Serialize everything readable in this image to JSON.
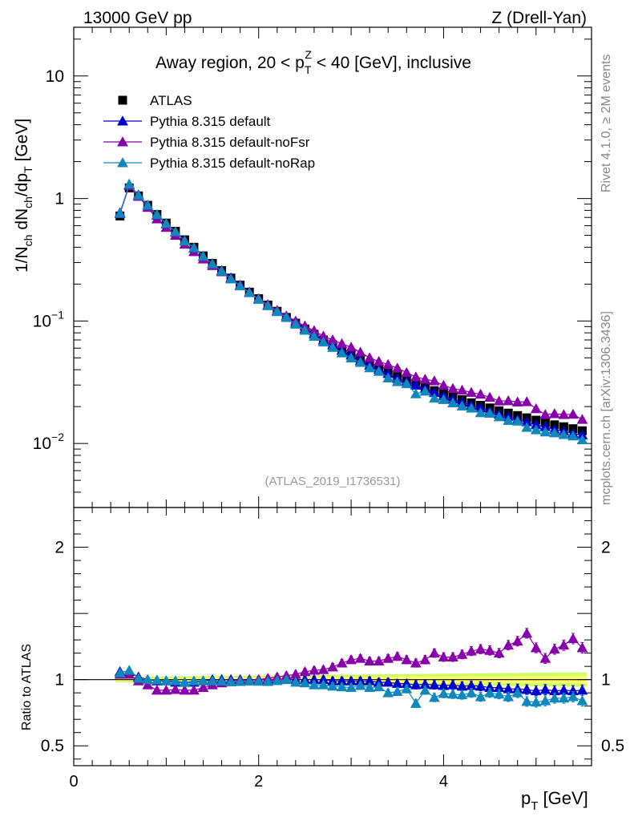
{
  "header": {
    "left": "13000 GeV pp",
    "right": "Z (Drell-Yan)"
  },
  "side_text": {
    "rivet": "Rivet 4.1.0, ≥ 2M events",
    "mcplots": "mcplots.cern.ch [arXiv:1306.3436]"
  },
  "chart_data": [
    {
      "type": "scatter",
      "panel": "main",
      "title_parts": {
        "prefix": "Away region, 20 < p",
        "sub": "T",
        "sup": "Z",
        "suffix": " < 40 [GeV], inclusive"
      },
      "analysis_tag": "(ATLAS_2019_I1736531)",
      "ylabel": "1/N_ch dN_ch/dp_T [GeV]",
      "yscale": "log",
      "ylim": [
        0.003,
        25
      ],
      "xlim": [
        0,
        5.6
      ],
      "y_tick_labels": [
        {
          "base": "10",
          "exp": "",
          "value": 10
        },
        {
          "base": "1",
          "exp": "",
          "value": 1
        },
        {
          "base": "10",
          "exp": "−1",
          "value": 0.1
        },
        {
          "base": "10",
          "exp": "−2",
          "value": 0.01
        }
      ],
      "legend": {
        "placement": "top-left",
        "entries": [
          "ATLAS",
          "Pythia 8.315 default",
          "Pythia 8.315 default-noFsr",
          "Pythia 8.315 default-noRap"
        ]
      },
      "x": [
        0.5,
        0.6,
        0.7,
        0.8,
        0.9,
        1.0,
        1.1,
        1.2,
        1.3,
        1.4,
        1.5,
        1.6,
        1.7,
        1.8,
        1.9,
        2.0,
        2.1,
        2.2,
        2.3,
        2.4,
        2.5,
        2.6,
        2.7,
        2.8,
        2.9,
        3.0,
        3.1,
        3.2,
        3.3,
        3.4,
        3.5,
        3.6,
        3.7,
        3.8,
        3.9,
        4.0,
        4.1,
        4.2,
        4.3,
        4.4,
        4.5,
        4.6,
        4.7,
        4.8,
        4.9,
        5.0,
        5.1,
        5.2,
        5.3,
        5.4,
        5.5
      ],
      "series": [
        {
          "name": "ATLAS",
          "color": "#000000",
          "marker": "square",
          "values": [
            0.72,
            1.22,
            1.05,
            0.88,
            0.74,
            0.63,
            0.54,
            0.46,
            0.4,
            0.34,
            0.295,
            0.258,
            0.224,
            0.196,
            0.172,
            0.152,
            0.135,
            0.12,
            0.107,
            0.096,
            0.086,
            0.078,
            0.07,
            0.064,
            0.058,
            0.053,
            0.048,
            0.044,
            0.041,
            0.038,
            0.035,
            0.033,
            0.031,
            0.029,
            0.027,
            0.0255,
            0.024,
            0.0228,
            0.0215,
            0.0205,
            0.0195,
            0.0185,
            0.0177,
            0.0169,
            0.0162,
            0.0155,
            0.0148,
            0.0142,
            0.0137,
            0.0132,
            0.0127
          ]
        },
        {
          "name": "Pythia 8.315 default",
          "color": "#0000cc",
          "marker": "triangle",
          "values": [
            0.765,
            1.29,
            1.07,
            0.88,
            0.73,
            0.62,
            0.53,
            0.452,
            0.393,
            0.337,
            0.294,
            0.258,
            0.225,
            0.196,
            0.172,
            0.152,
            0.135,
            0.12,
            0.107,
            0.0962,
            0.0862,
            0.0783,
            0.0697,
            0.0637,
            0.0575,
            0.0526,
            0.0474,
            0.0435,
            0.0402,
            0.0372,
            0.0339,
            0.032,
            0.0299,
            0.028,
            0.026,
            0.0244,
            0.023,
            0.0217,
            0.0205,
            0.0195,
            0.0183,
            0.0174,
            0.0165,
            0.0157,
            0.015,
            0.0142,
            0.0137,
            0.013,
            0.0126,
            0.0121,
            0.0117
          ]
        },
        {
          "name": "Pythia 8.315 default-noFsr",
          "color": "#8800aa",
          "marker": "triangle",
          "values": [
            0.75,
            1.27,
            1.04,
            0.845,
            0.68,
            0.58,
            0.5,
            0.423,
            0.368,
            0.32,
            0.283,
            0.252,
            0.222,
            0.195,
            0.171,
            0.152,
            0.136,
            0.122,
            0.11,
            0.0998,
            0.0911,
            0.0833,
            0.0752,
            0.0701,
            0.0652,
            0.061,
            0.0556,
            0.0501,
            0.0467,
            0.0441,
            0.0412,
            0.0379,
            0.0349,
            0.0334,
            0.0324,
            0.0298,
            0.0281,
            0.0272,
            0.0261,
            0.0252,
            0.0238,
            0.0222,
            0.0223,
            0.0218,
            0.0219,
            0.0192,
            0.0172,
            0.0175,
            0.0172,
            0.0173,
            0.0157
          ]
        },
        {
          "name": "Pythia 8.315 default-noRap",
          "color": "#1188bb",
          "marker": "triangle",
          "values": [
            0.757,
            1.31,
            1.06,
            0.88,
            0.738,
            0.625,
            0.535,
            0.45,
            0.396,
            0.337,
            0.292,
            0.255,
            0.22,
            0.193,
            0.17,
            0.15,
            0.133,
            0.119,
            0.107,
            0.0941,
            0.0838,
            0.0749,
            0.0672,
            0.0608,
            0.0548,
            0.0498,
            0.0458,
            0.0414,
            0.0387,
            0.0342,
            0.0319,
            0.0307,
            0.0254,
            0.0267,
            0.0234,
            0.0228,
            0.0214,
            0.0202,
            0.0194,
            0.0178,
            0.0176,
            0.0165,
            0.0154,
            0.0152,
            0.0135,
            0.0129,
            0.0124,
            0.0122,
            0.0118,
            0.0115,
            0.0107
          ]
        }
      ]
    },
    {
      "type": "scatter",
      "panel": "ratio",
      "ylabel": "Ratio to ATLAS",
      "xlabel": "p_T [GeV]",
      "ylim": [
        0.35,
        2.3
      ],
      "xlim": [
        0,
        5.6
      ],
      "y_tick_labels": [
        "2",
        "1",
        "0.5"
      ],
      "y_tick_values": [
        2,
        1,
        0.5
      ],
      "x_tick_labels": [
        "0",
        "2",
        "4"
      ],
      "x_tick_values": [
        0,
        2,
        4
      ],
      "reference_band": {
        "description": "ATLAS uncertainty band",
        "outer_color": "#ccff66",
        "inner_color": "#ffff66",
        "x": [
          0.45,
          5.55
        ],
        "half_width_start": 0.02,
        "half_width_end": 0.055
      },
      "x": [
        0.5,
        0.6,
        0.7,
        0.8,
        0.9,
        1.0,
        1.1,
        1.2,
        1.3,
        1.4,
        1.5,
        1.6,
        1.7,
        1.8,
        1.9,
        2.0,
        2.1,
        2.2,
        2.3,
        2.4,
        2.5,
        2.6,
        2.7,
        2.8,
        2.9,
        3.0,
        3.1,
        3.2,
        3.3,
        3.4,
        3.5,
        3.6,
        3.7,
        3.8,
        3.9,
        4.0,
        4.1,
        4.2,
        4.3,
        4.4,
        4.5,
        4.6,
        4.7,
        4.8,
        4.9,
        5.0,
        5.1,
        5.2,
        5.3,
        5.4,
        5.5
      ],
      "series": [
        {
          "name": "Pythia 8.315 default",
          "color": "#0000cc",
          "values": [
            1.06,
            1.06,
            1.02,
            1.0,
            0.99,
            0.99,
            0.98,
            0.98,
            0.98,
            0.99,
            1.0,
            1.0,
            1.0,
            1.0,
            1.0,
            1.0,
            1.0,
            1.0,
            1.0,
            1.0,
            1.0,
            1.0,
            1.0,
            0.99,
            0.99,
            0.99,
            0.99,
            0.99,
            0.98,
            0.98,
            0.97,
            0.97,
            0.96,
            0.965,
            0.96,
            0.955,
            0.96,
            0.95,
            0.955,
            0.95,
            0.94,
            0.94,
            0.93,
            0.93,
            0.925,
            0.915,
            0.925,
            0.915,
            0.92,
            0.915,
            0.92
          ]
        },
        {
          "name": "Pythia 8.315 default-noFsr",
          "color": "#8800aa",
          "values": [
            1.04,
            1.04,
            0.99,
            0.96,
            0.92,
            0.92,
            0.925,
            0.92,
            0.92,
            0.94,
            0.96,
            0.975,
            0.99,
            0.995,
            0.995,
            1.0,
            1.01,
            1.02,
            1.03,
            1.04,
            1.06,
            1.07,
            1.075,
            1.095,
            1.125,
            1.15,
            1.16,
            1.14,
            1.14,
            1.16,
            1.175,
            1.15,
            1.125,
            1.15,
            1.2,
            1.17,
            1.17,
            1.19,
            1.215,
            1.23,
            1.22,
            1.2,
            1.26,
            1.29,
            1.35,
            1.24,
            1.16,
            1.23,
            1.26,
            1.31,
            1.24
          ]
        },
        {
          "name": "Pythia 8.315 default-noRap",
          "color": "#1188bb",
          "values": [
            1.05,
            1.07,
            1.01,
            1.0,
            0.997,
            0.992,
            0.991,
            0.978,
            0.99,
            0.991,
            0.99,
            0.988,
            0.982,
            0.985,
            0.988,
            0.987,
            0.985,
            0.992,
            1.0,
            0.98,
            0.975,
            0.96,
            0.96,
            0.95,
            0.945,
            0.94,
            0.955,
            0.94,
            0.945,
            0.9,
            0.91,
            0.93,
            0.82,
            0.92,
            0.865,
            0.895,
            0.89,
            0.885,
            0.9,
            0.87,
            0.9,
            0.89,
            0.87,
            0.9,
            0.835,
            0.83,
            0.84,
            0.86,
            0.86,
            0.87,
            0.84
          ]
        }
      ]
    }
  ]
}
